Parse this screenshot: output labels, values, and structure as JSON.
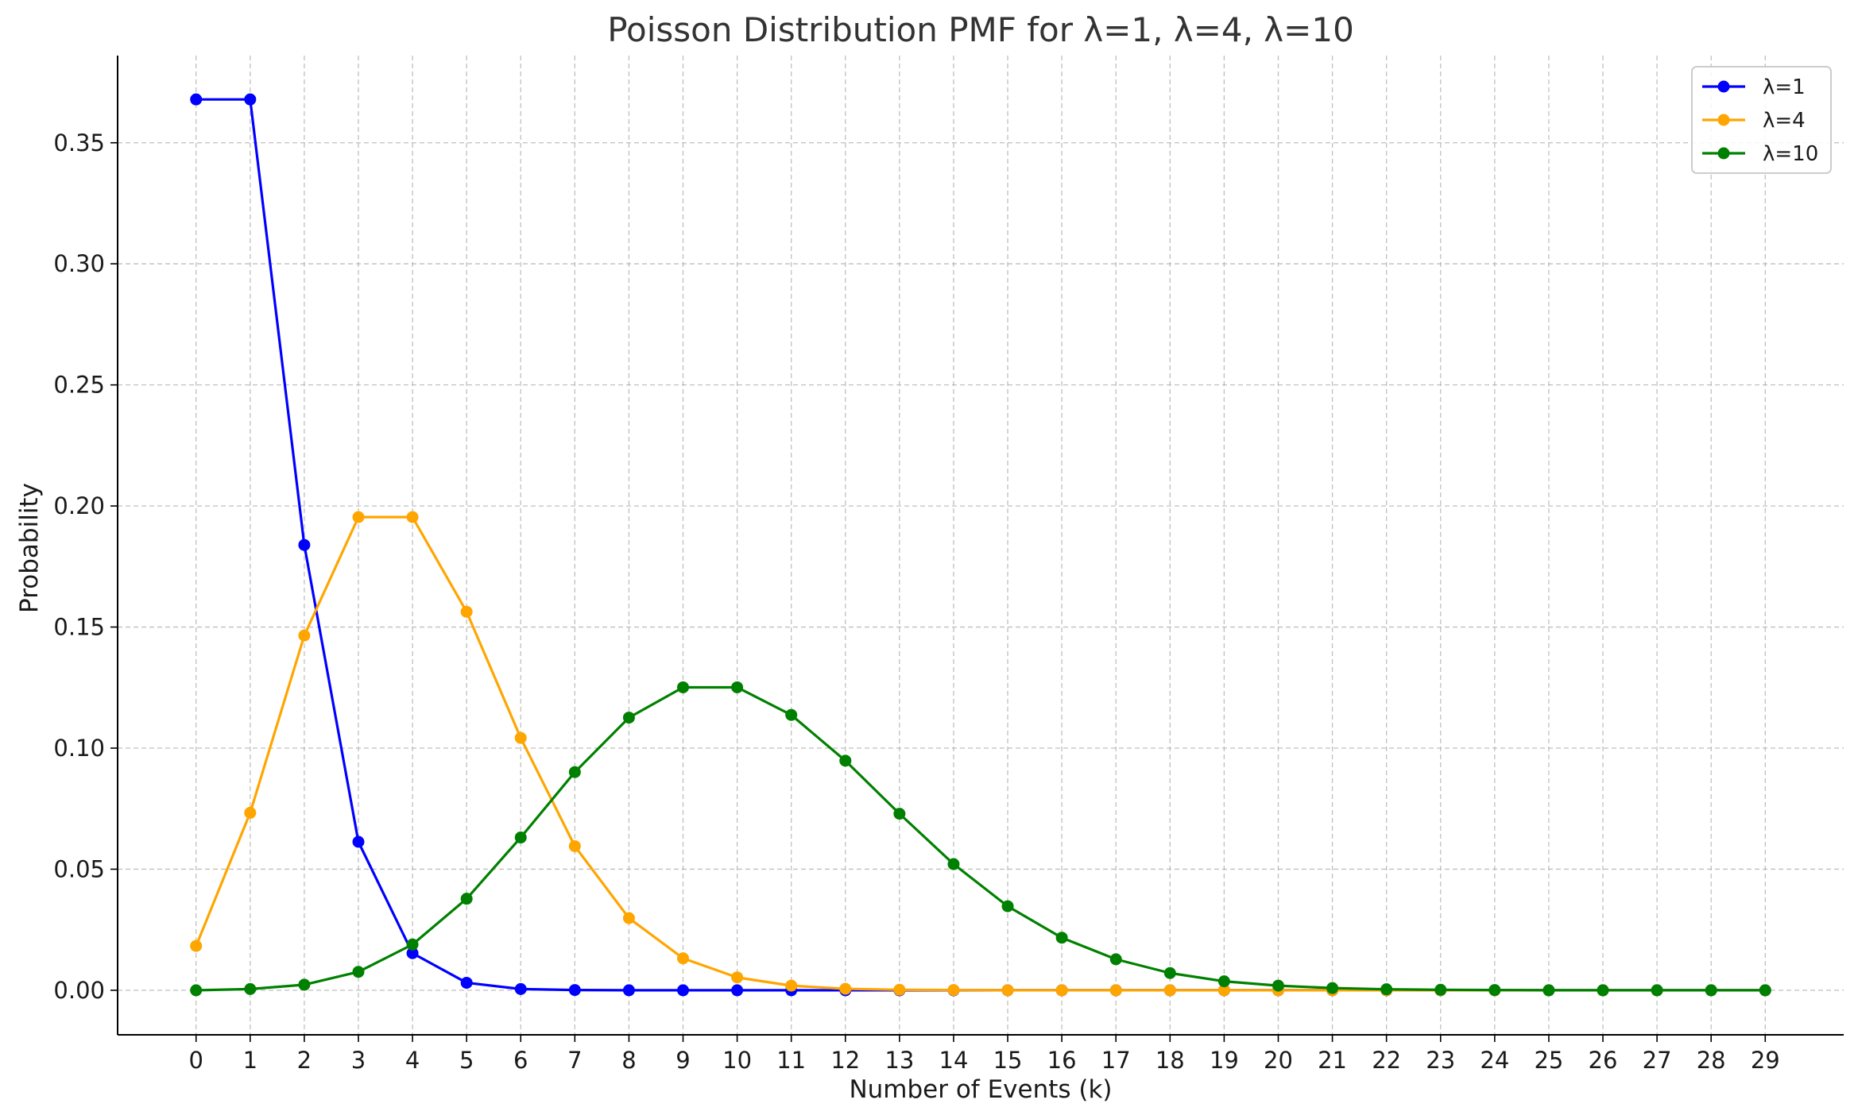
{
  "chart_data": {
    "type": "line",
    "title": "Poisson Distribution PMF for λ=1, λ=4, λ=10",
    "xlabel": "Number of Events (k)",
    "ylabel": "Probability",
    "x": [
      0,
      1,
      2,
      3,
      4,
      5,
      6,
      7,
      8,
      9,
      10,
      11,
      12,
      13,
      14,
      15,
      16,
      17,
      18,
      19,
      20,
      21,
      22,
      23,
      24,
      25,
      26,
      27,
      28,
      29
    ],
    "xlim": [
      -1.45,
      30.45
    ],
    "ylim": [
      -0.0184,
      0.386
    ],
    "yticks": [
      0.0,
      0.05,
      0.1,
      0.15,
      0.2,
      0.25,
      0.3,
      0.35
    ],
    "ytick_labels": [
      "0.00",
      "0.05",
      "0.10",
      "0.15",
      "0.20",
      "0.25",
      "0.30",
      "0.35"
    ],
    "grid": true,
    "legend_position": "top-right",
    "series": [
      {
        "name": "λ=1",
        "color": "#0000ff",
        "values": [
          0.3679,
          0.3679,
          0.1839,
          0.0613,
          0.0153,
          0.0031,
          0.0005,
          0.0001,
          0.0,
          0.0,
          0.0,
          0.0,
          0.0,
          0.0,
          0.0,
          0.0,
          0.0,
          0.0,
          0.0,
          0.0,
          0.0,
          0.0,
          0.0,
          0.0,
          0.0,
          0.0,
          0.0,
          0.0,
          0.0,
          0.0
        ]
      },
      {
        "name": "λ=4",
        "color": "#ffa500",
        "values": [
          0.0183,
          0.0733,
          0.1465,
          0.1954,
          0.1954,
          0.1563,
          0.1042,
          0.0595,
          0.0298,
          0.0132,
          0.0053,
          0.0019,
          0.0006,
          0.0002,
          0.0001,
          0.0,
          0.0,
          0.0,
          0.0,
          0.0,
          0.0,
          0.0,
          0.0,
          0.0,
          0.0,
          0.0,
          0.0,
          0.0,
          0.0,
          0.0
        ]
      },
      {
        "name": "λ=10",
        "color": "#008000",
        "values": [
          0.0,
          0.0005,
          0.0023,
          0.0076,
          0.0189,
          0.0378,
          0.0631,
          0.0901,
          0.1126,
          0.1251,
          0.1251,
          0.1137,
          0.0948,
          0.0729,
          0.0521,
          0.0347,
          0.0217,
          0.0128,
          0.0071,
          0.0037,
          0.0019,
          0.0009,
          0.0004,
          0.0002,
          0.0001,
          0.0,
          0.0,
          0.0,
          0.0,
          0.0
        ]
      }
    ]
  }
}
